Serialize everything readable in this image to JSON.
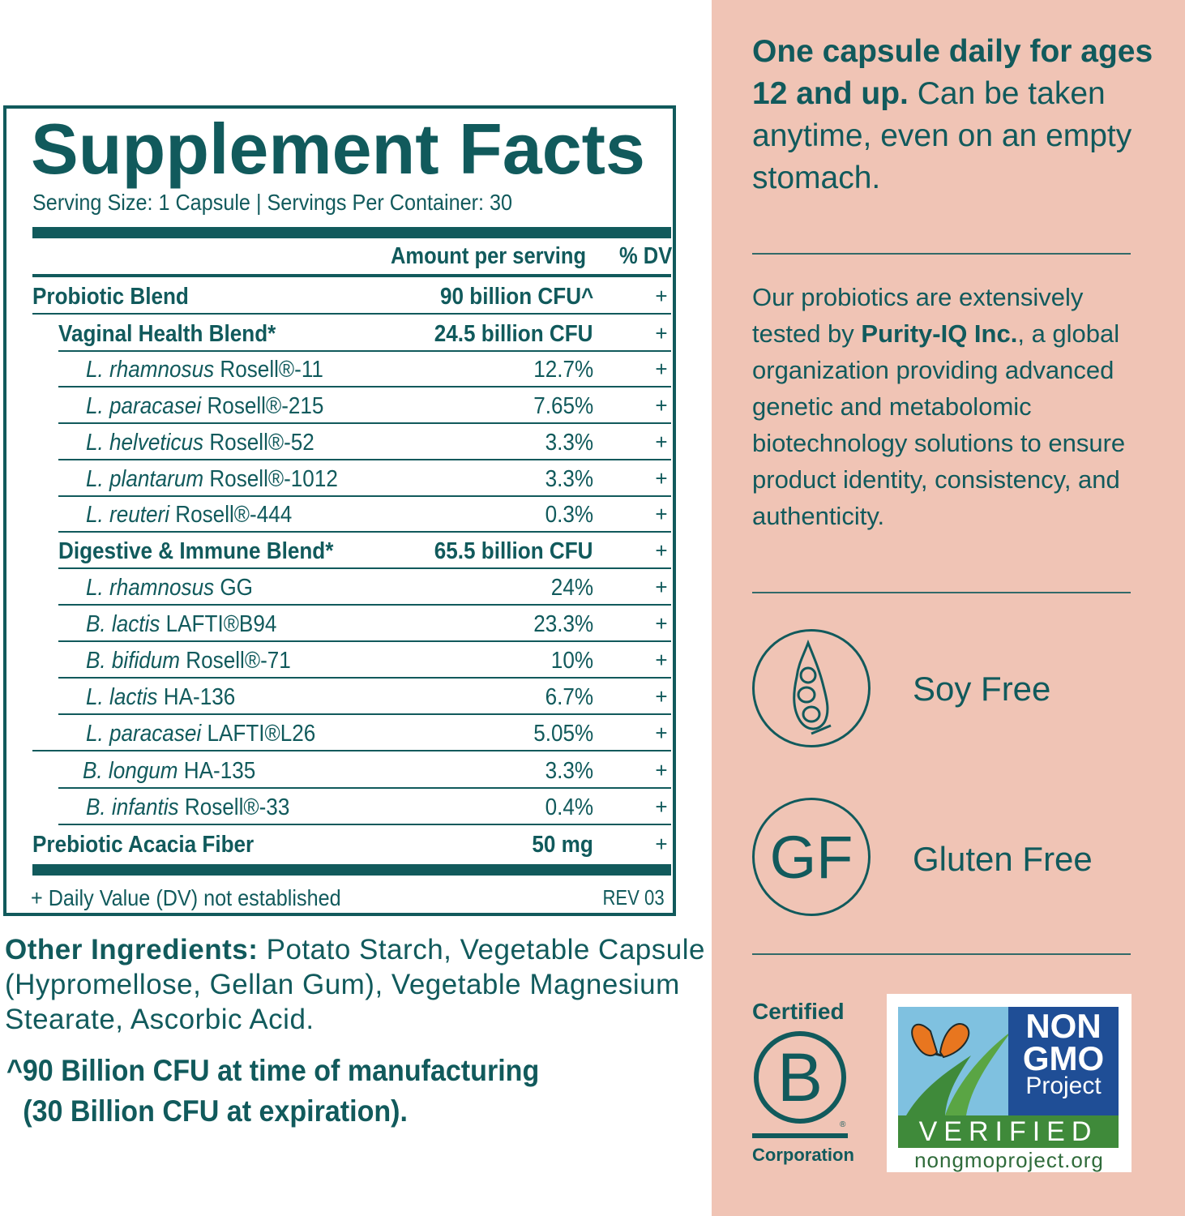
{
  "facts": {
    "title": "Supplement Facts",
    "serving": "Serving Size: 1 Capsule | Servings Per Container: 30",
    "col_amount": "Amount per serving",
    "col_dv": "% DV",
    "rows": [
      {
        "genus": "",
        "strain": "Probiotic Blend",
        "amount": "90 billion CFU^",
        "dv": "+"
      },
      {
        "genus": "",
        "strain": "Vaginal Health Blend*",
        "amount": "24.5 billion CFU",
        "dv": "+"
      },
      {
        "genus": "L. rhamnosus",
        "strain": " Rosell®-11",
        "amount": "12.7%",
        "dv": "+"
      },
      {
        "genus": "L. paracasei",
        "strain": " Rosell®-215",
        "amount": "7.65%",
        "dv": "+"
      },
      {
        "genus": "L. helveticus",
        "strain": " Rosell®-52",
        "amount": "3.3%",
        "dv": "+"
      },
      {
        "genus": "L. plantarum",
        "strain": " Rosell®-1012",
        "amount": "3.3%",
        "dv": "+"
      },
      {
        "genus": "L. reuteri",
        "strain": " Rosell®-444",
        "amount": "0.3%",
        "dv": "+"
      },
      {
        "genus": "",
        "strain": "Digestive & Immune Blend*",
        "amount": "65.5 billion CFU",
        "dv": "+"
      },
      {
        "genus": "L. rhamnosus",
        "strain": " GG",
        "amount": "24%",
        "dv": "+"
      },
      {
        "genus": "B. lactis",
        "strain": " LAFTI®B94",
        "amount": "23.3%",
        "dv": "+"
      },
      {
        "genus": "B. bifidum",
        "strain": " Rosell®-71",
        "amount": "10%",
        "dv": "+"
      },
      {
        "genus": "L. lactis",
        "strain": " HA-136",
        "amount": "6.7%",
        "dv": "+"
      },
      {
        "genus": "L. paracasei",
        "strain": " LAFTI®L26",
        "amount": "5.05%",
        "dv": "+"
      },
      {
        "genus": "B. longum",
        "strain": " HA-135",
        "amount": "3.3%",
        "dv": "+"
      },
      {
        "genus": "B. infantis",
        "strain": " Rosell®-33",
        "amount": "0.4%",
        "dv": "+"
      },
      {
        "genus": "",
        "strain": "Prebiotic Acacia Fiber",
        "amount": "50 mg",
        "dv": "+"
      }
    ],
    "footnote": "+ Daily Value (DV) not established",
    "rev": "REV 03"
  },
  "other_ingredients": {
    "label": "Other Ingredients:",
    "text": " Potato Starch, Vegetable Capsule  (Hypromellose, Gellan Gum), Vegetable Magnesium Stearate, Ascorbic Acid."
  },
  "cfu_note": {
    "line1": "^90 Billion CFU at time of manufacturing",
    "line2": "(30 Billion CFU at expiration)."
  },
  "dose": {
    "bold": "One capsule daily for ages 12 and up.",
    "rest": " Can be taken anytime, even on an empty stomach."
  },
  "testing": {
    "before": "Our probiotics are extensively tested by ",
    "bold": "Purity-IQ Inc.",
    "after": ", a global organization providing advanced genetic and metabolomic biotechnology solutions to ensure product identity, consistency, and authenticity."
  },
  "badges": {
    "soy": {
      "label": "Soy Free",
      "icon": "soybean-icon"
    },
    "gluten": {
      "label": "Gluten Free",
      "icon_text": "GF"
    }
  },
  "bcorp": {
    "certified": "Certified",
    "letter": "B",
    "corporation": "Corporation",
    "reg": "®"
  },
  "nongmo": {
    "non": "NON",
    "gmo": "GMO",
    "project": "Project",
    "verified": "VERIFIED",
    "url": "nongmoproject.org",
    "colors": {
      "sky": "#7fc1e0",
      "blue": "#1f4e96",
      "green": "#3f8a3a",
      "butterfly": "#e8761f"
    }
  },
  "colors": {
    "teal": "#115a5c",
    "peach": "#f0c4b5"
  }
}
